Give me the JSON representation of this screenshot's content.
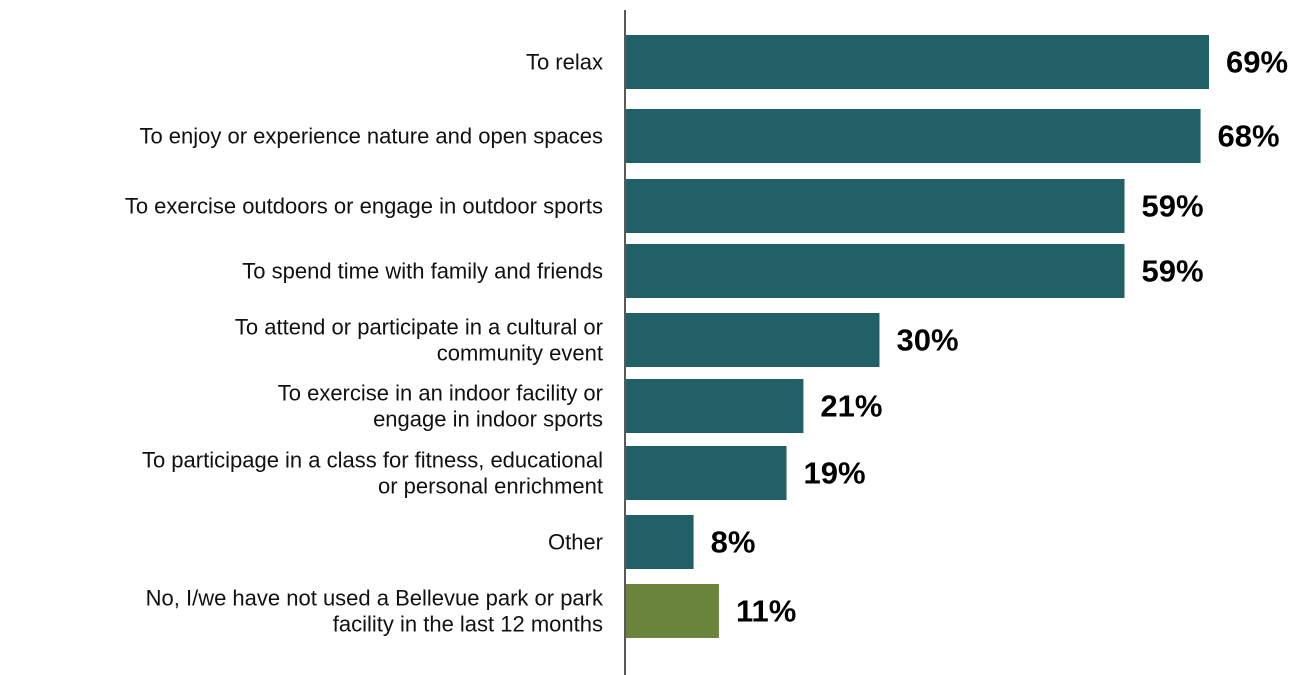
{
  "chart_data": {
    "type": "bar",
    "orientation": "horizontal",
    "categories": [
      [
        "To relax"
      ],
      [
        "To enjoy or experience nature and open spaces"
      ],
      [
        "To exercise outdoors or engage in outdoor sports"
      ],
      [
        "To spend time with family and friends"
      ],
      [
        "To attend or participate in a cultural or",
        "community event"
      ],
      [
        "To exercise in an indoor facility or",
        "engage in indoor sports"
      ],
      [
        "To participage in a class for fitness, educational",
        "or personal enrichment"
      ],
      [
        "Other"
      ],
      [
        "No, I/we have not used a Bellevue park or park",
        "facility in the last 12 months"
      ]
    ],
    "values": [
      69,
      68,
      59,
      59,
      30,
      21,
      19,
      8,
      11
    ],
    "value_labels": [
      "69%",
      "68%",
      "59%",
      "59%",
      "30%",
      "21%",
      "19%",
      "8%",
      "11%"
    ],
    "bar_colors": [
      "#226067",
      "#226067",
      "#226067",
      "#226067",
      "#226067",
      "#226067",
      "#226067",
      "#226067",
      "#6A843B"
    ],
    "title": "",
    "xlabel": "",
    "ylabel": "",
    "xlim": [
      0,
      69
    ],
    "grid": false,
    "legend": "none"
  }
}
